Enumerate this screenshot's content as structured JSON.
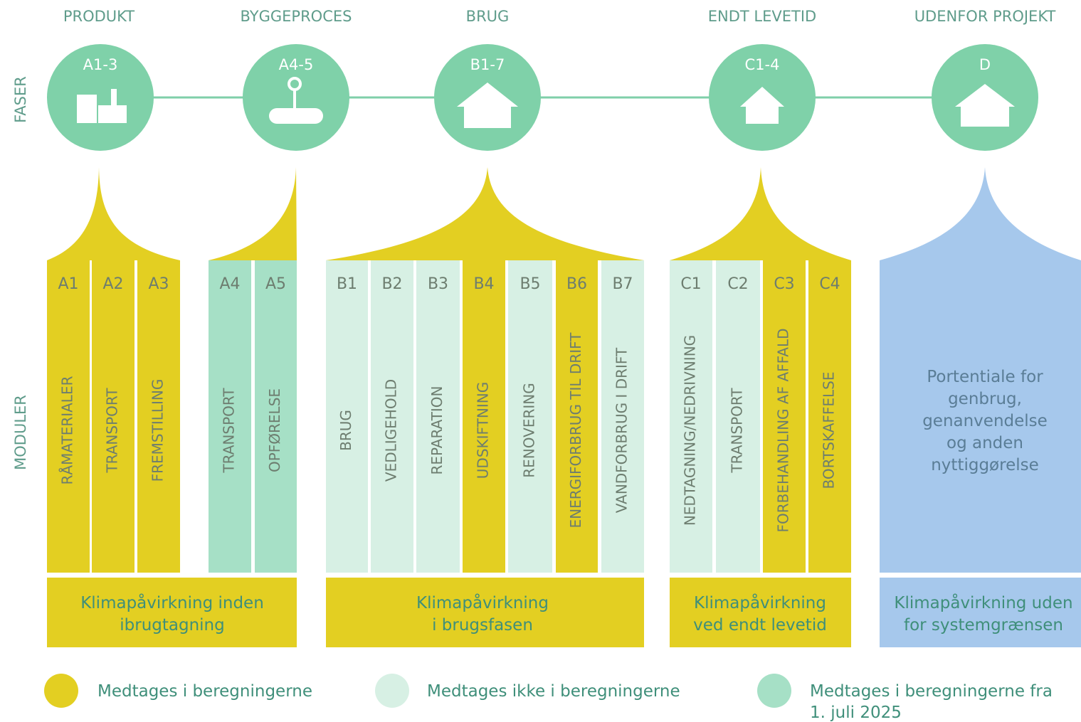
{
  "axis_labels": {
    "phases": "FASER",
    "modules": "MODULER"
  },
  "phases": [
    {
      "title": "PRODUKT",
      "code": "A1-3"
    },
    {
      "title": "BYGGEPROCES",
      "code": "A4-5"
    },
    {
      "title": "BRUG",
      "code": "B1-7"
    },
    {
      "title": "ENDT LEVETID",
      "code": "C1-4"
    },
    {
      "title": "UDENFOR PROJEKT",
      "code": "D"
    }
  ],
  "modules": [
    {
      "code": "A1",
      "label": "RÅMATERIALER",
      "color": "#e3cf22"
    },
    {
      "code": "A2",
      "label": "TRANSPORT",
      "color": "#e3cf22"
    },
    {
      "code": "A3",
      "label": "FREMSTILLING",
      "color": "#e3cf22"
    },
    {
      "code": "A4",
      "label": "TRANSPORT",
      "color": "#a6e0c6"
    },
    {
      "code": "A5",
      "label": "OPFØRELSE",
      "color": "#a6e0c6"
    },
    {
      "code": "B1",
      "label": "BRUG",
      "color": "#d7f0e4"
    },
    {
      "code": "B2",
      "label": "VEDLIGEHOLD",
      "color": "#d7f0e4"
    },
    {
      "code": "B3",
      "label": "REPARATION",
      "color": "#d7f0e4"
    },
    {
      "code": "B4",
      "label": "UDSKIFTNING",
      "color": "#e3cf22"
    },
    {
      "code": "B5",
      "label": "RENOVERING",
      "color": "#d7f0e4"
    },
    {
      "code": "B6",
      "label": "ENERGIFORBRUG TIL DRIFT",
      "color": "#e3cf22"
    },
    {
      "code": "B7",
      "label": "VANDFORBRUG I DRIFT",
      "color": "#d7f0e4"
    },
    {
      "code": "C1",
      "label": "NEDTAGNING/NEDRIVNING",
      "color": "#d7f0e4"
    },
    {
      "code": "C2",
      "label": "TRANSPORT",
      "color": "#d7f0e4"
    },
    {
      "code": "C3",
      "label": "FORBEHANDLING AF AFFALD",
      "color": "#e3cf22"
    },
    {
      "code": "C4",
      "label": "BORTSKAFFELSE",
      "color": "#e3cf22"
    }
  ],
  "d_module": {
    "lines": [
      "Portentiale for",
      "genbrug,",
      "genanvendelse",
      "og anden",
      "nyttiggørelse"
    ],
    "color": "#a6c8ec"
  },
  "summaries": [
    {
      "lines": [
        "Klimapåvirkning inden",
        "ibrugtagning"
      ],
      "color": "#e3cf22"
    },
    {
      "lines": [
        "Klimapåvirkning",
        "i brugsfasen"
      ],
      "color": "#e3cf22"
    },
    {
      "lines": [
        "Klimapåvirkning",
        "ved endt levetid"
      ],
      "color": "#e3cf22"
    },
    {
      "lines": [
        "Klimapåvirkning uden",
        "for systemgrænsen"
      ],
      "color": "#a6c8ec"
    }
  ],
  "legend": [
    {
      "lines": [
        "Medtages i beregningerne"
      ],
      "color": "#e3cf22"
    },
    {
      "lines": [
        "Medtages ikke i beregningerne"
      ],
      "color": "#d7f0e4"
    },
    {
      "lines": [
        "Medtages i beregningerne fra",
        "1. juli 2025"
      ],
      "color": "#a6e0c6"
    }
  ]
}
